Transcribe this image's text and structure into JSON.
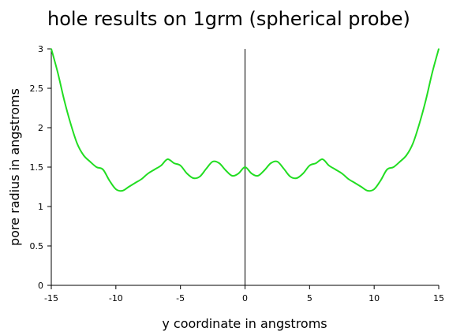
{
  "chart_data": {
    "type": "line",
    "title": "hole results on 1grm (spherical probe)",
    "xlabel": "y coordinate in angstroms",
    "ylabel": "pore radius in angstroms",
    "xlim": [
      -15,
      15
    ],
    "ylim": [
      0,
      3
    ],
    "x_ticks": [
      -15,
      -10,
      -5,
      0,
      5,
      10,
      15
    ],
    "y_ticks": [
      0,
      0.5,
      1,
      1.5,
      2,
      2.5,
      3
    ],
    "x_tick_labels": [
      "-15",
      "-10",
      "-5",
      "0",
      "5",
      "10",
      "15"
    ],
    "y_tick_labels": [
      "0",
      "0.5",
      "1",
      "1.5",
      "2",
      "2.5",
      "3"
    ],
    "grid": false,
    "colors": {
      "series": "#22dd22",
      "axis": "#000000"
    },
    "series": [
      {
        "x": [
          -15,
          -14.5,
          -14,
          -13.5,
          -13,
          -12.5,
          -12,
          -11.5,
          -11,
          -10.5,
          -10,
          -9.5,
          -9,
          -8.5,
          -8,
          -7.5,
          -7,
          -6.5,
          -6,
          -5.5,
          -5,
          -4.5,
          -4,
          -3.5,
          -3,
          -2.5,
          -2,
          -1.5,
          -1,
          -0.5,
          0,
          0.5,
          1,
          1.5,
          2,
          2.5,
          3,
          3.5,
          4,
          4.5,
          5,
          5.5,
          6,
          6.5,
          7,
          7.5,
          8,
          8.5,
          9,
          9.5,
          10,
          10.5,
          11,
          11.5,
          12,
          12.5,
          13,
          13.5,
          14,
          14.5,
          15
        ],
        "y": [
          3.0,
          2.7,
          2.35,
          2.05,
          1.8,
          1.65,
          1.57,
          1.5,
          1.47,
          1.33,
          1.22,
          1.2,
          1.25,
          1.3,
          1.35,
          1.42,
          1.47,
          1.52,
          1.6,
          1.55,
          1.52,
          1.42,
          1.36,
          1.38,
          1.48,
          1.57,
          1.55,
          1.46,
          1.39,
          1.42,
          1.5,
          1.42,
          1.39,
          1.46,
          1.55,
          1.57,
          1.48,
          1.38,
          1.36,
          1.42,
          1.52,
          1.55,
          1.6,
          1.52,
          1.47,
          1.42,
          1.35,
          1.3,
          1.25,
          1.2,
          1.22,
          1.33,
          1.47,
          1.5,
          1.57,
          1.65,
          1.8,
          2.05,
          2.35,
          2.7,
          3.0
        ]
      }
    ]
  }
}
